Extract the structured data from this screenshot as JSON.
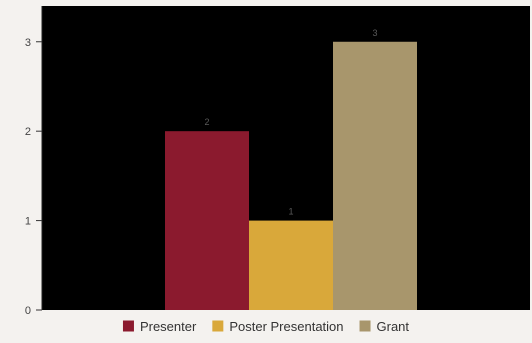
{
  "chart_data": {
    "type": "bar",
    "title": "",
    "xlabel": "",
    "ylabel": "",
    "ylim": [
      0,
      3.4
    ],
    "yticks": [
      0,
      1,
      2,
      3
    ],
    "grid": false,
    "legend_position": "bottom",
    "plot_background": "#000000",
    "series": [
      {
        "name": "Presenter",
        "value": 2,
        "color": "#8b1a2e"
      },
      {
        "name": "Poster Presentation",
        "value": 1,
        "color": "#d9a83a"
      },
      {
        "name": "Grant",
        "value": 3,
        "color": "#a8966c"
      }
    ]
  }
}
